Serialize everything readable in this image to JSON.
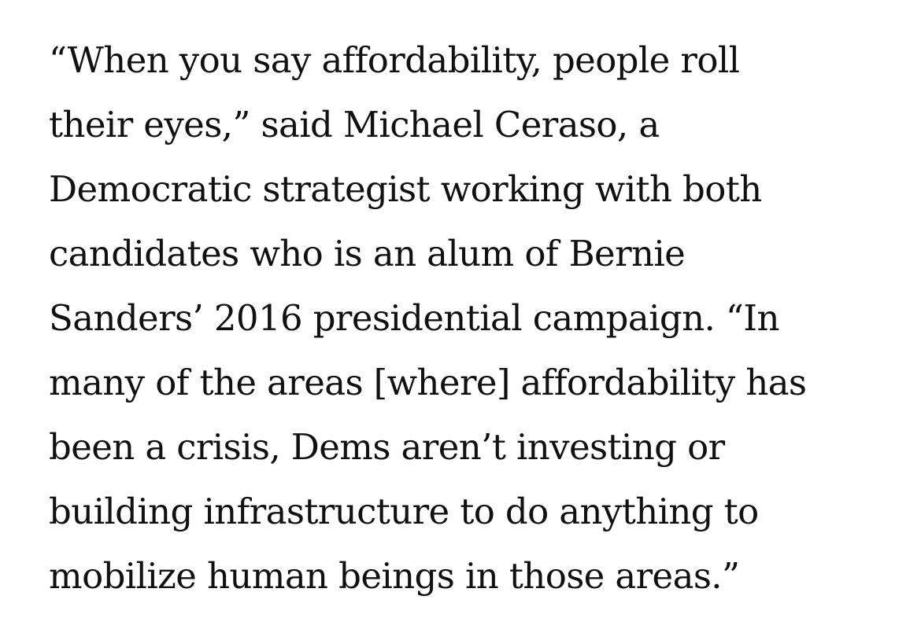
{
  "article": {
    "paragraph_lines": [
      "“When you say affordability, people roll",
      "their eyes,” said Michael Ceraso, a",
      "Democratic strategist working with both",
      "candidates who is an alum of Bernie",
      "Sanders’ 2016 presidential campaign. “In",
      "many of the areas [where] affordability has",
      "been a crisis, Dems aren’t investing or",
      "building infrastructure to do anything to",
      "mobilize human beings in those areas.”"
    ]
  }
}
